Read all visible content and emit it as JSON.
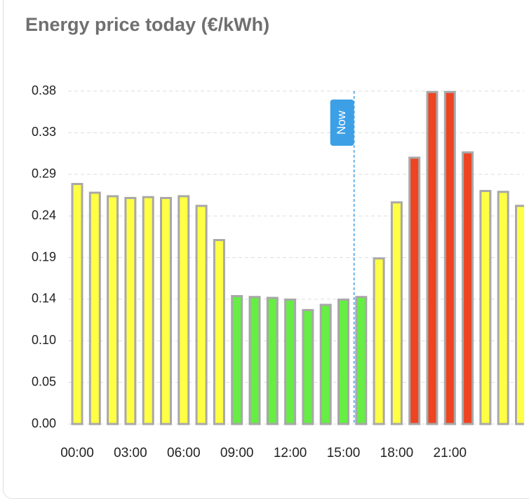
{
  "chart_data": {
    "type": "bar",
    "title": "Energy price today (€/kWh)",
    "categories": [
      "00:00",
      null,
      null,
      "03:00",
      null,
      null,
      "06:00",
      null,
      null,
      "09:00",
      null,
      null,
      "12:00",
      null,
      null,
      "15:00",
      null,
      null,
      "18:00",
      null,
      null,
      "21:00",
      null,
      null,
      null,
      null
    ],
    "values": [
      0.274,
      0.264,
      0.26,
      0.258,
      0.259,
      0.258,
      0.26,
      0.249,
      0.21,
      0.146,
      0.145,
      0.144,
      0.142,
      0.13,
      0.136,
      0.142,
      0.145,
      0.189,
      0.253,
      0.304,
      0.379,
      0.379,
      0.31,
      0.266,
      0.265,
      0.249
    ],
    "colors": [
      "#ffff44",
      "#ffff44",
      "#ffff44",
      "#ffff44",
      "#ffff44",
      "#ffff44",
      "#ffff44",
      "#ffff44",
      "#ffff44",
      "#66ee44",
      "#66ee44",
      "#66ee44",
      "#66ee44",
      "#66ee44",
      "#66ee44",
      "#66ee44",
      "#66ee44",
      "#ffff44",
      "#ffff44",
      "#ee4422",
      "#ee4422",
      "#ee4422",
      "#ee4422",
      "#ffff44",
      "#ffff44",
      "#ffff44"
    ],
    "ylim": [
      0,
      0.38
    ],
    "yticks": [
      {
        "value": 0,
        "label": "0.00"
      },
      {
        "value": 0.0475,
        "label": "0.05"
      },
      {
        "value": 0.095,
        "label": "0.10"
      },
      {
        "value": 0.1425,
        "label": "0.14"
      },
      {
        "value": 0.19,
        "label": "0.19"
      },
      {
        "value": 0.2375,
        "label": "0.24"
      },
      {
        "value": 0.285,
        "label": "0.29"
      },
      {
        "value": 0.3325,
        "label": "0.33"
      },
      {
        "value": 0.38,
        "label": "0.38"
      }
    ],
    "grid": true,
    "now_marker": {
      "label": "Now",
      "x": 15.6
    }
  }
}
